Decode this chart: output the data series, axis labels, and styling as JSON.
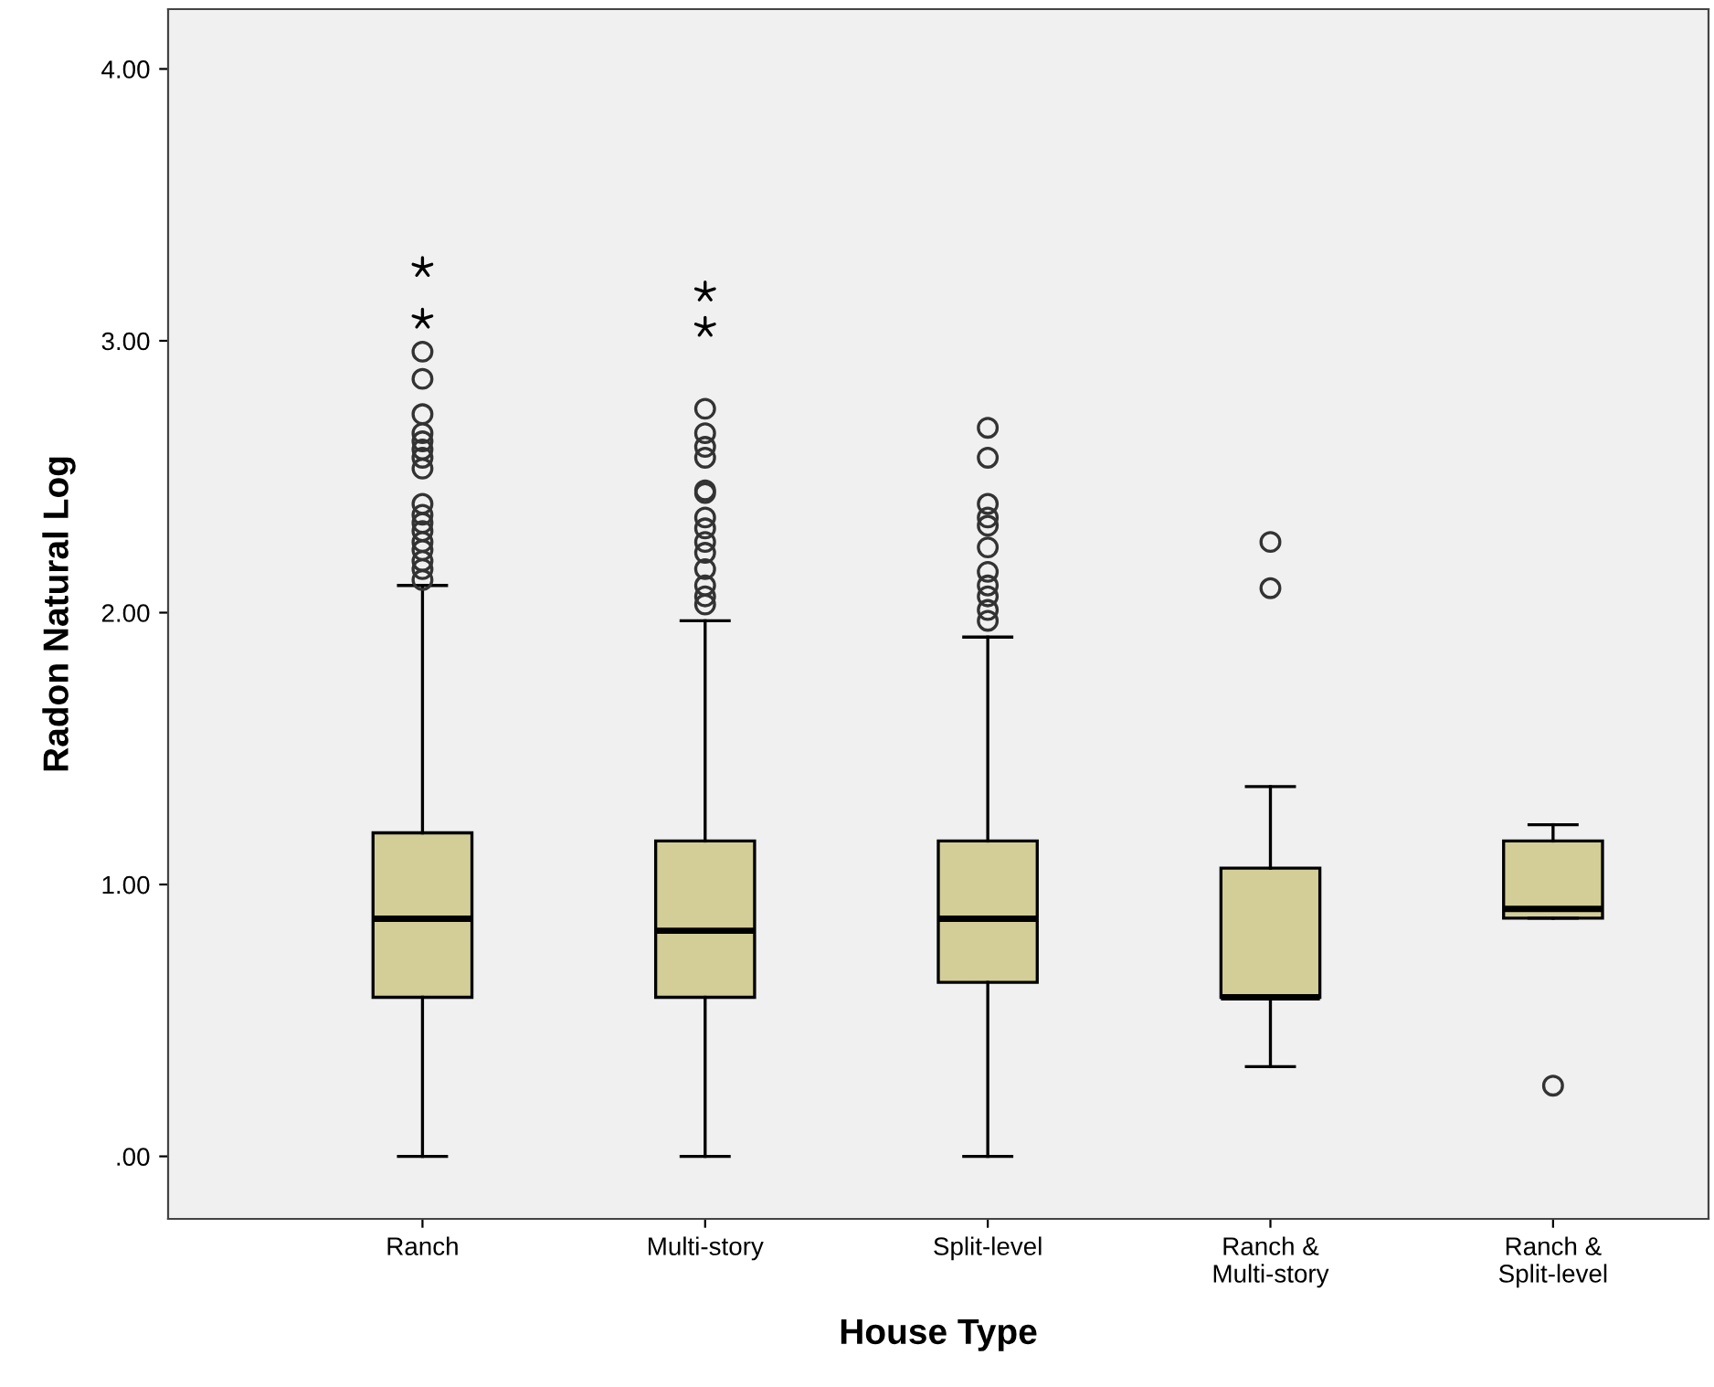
{
  "chart_data": {
    "type": "box",
    "xlabel": "House Type",
    "ylabel": "Radon Natural Log",
    "categories": [
      "Ranch",
      "Multi-story",
      "Split-level",
      "Ranch &\nMulti-story",
      "Ranch &\nSplit-level"
    ],
    "color": "#d3ce97",
    "boxes": [
      {
        "low": 0,
        "q1": 0.585,
        "median": 0.874,
        "q3": 1.19,
        "high": 2.1,
        "outliers": [
          3.27,
          3.08,
          2.96,
          2.86,
          2.73,
          2.66,
          2.63,
          2.6,
          2.57,
          2.53,
          2.4,
          2.36,
          2.33,
          2.3,
          2.26,
          2.23,
          2.19,
          2.16,
          2.12
        ]
      },
      {
        "low": 0,
        "q1": 0.585,
        "median": 0.83,
        "q3": 1.16,
        "high": 1.97,
        "outliers": [
          3.18,
          3.05,
          2.75,
          2.66,
          2.61,
          2.57,
          2.45,
          2.44,
          2.35,
          2.31,
          2.26,
          2.22,
          2.16,
          2.1,
          2.06,
          2.03
        ]
      },
      {
        "low": 0,
        "q1": 0.64,
        "median": 0.874,
        "q3": 1.16,
        "high": 1.91,
        "outliers": [
          2.68,
          2.57,
          2.4,
          2.35,
          2.32,
          2.24,
          2.15,
          2.1,
          2.06,
          2.01,
          1.97
        ]
      },
      {
        "low": 0.33,
        "q1": 0.585,
        "median": 0.585,
        "q3": 1.06,
        "high": 1.36,
        "outliers": [
          2.26,
          2.09
        ]
      },
      {
        "low": 0.876,
        "q1": 0.876,
        "median": 0.91,
        "q3": 1.16,
        "high": 1.22,
        "outliers": [
          0.26
        ]
      }
    ],
    "ylim": [
      -0.23,
      4.22
    ],
    "yticks": [
      {
        "value": 0,
        "label": ".00"
      },
      {
        "value": 1,
        "label": "1.00"
      },
      {
        "value": 2,
        "label": "2.00"
      },
      {
        "value": 3,
        "label": "3.00"
      },
      {
        "value": 4,
        "label": "4.00"
      }
    ],
    "grid": false
  }
}
